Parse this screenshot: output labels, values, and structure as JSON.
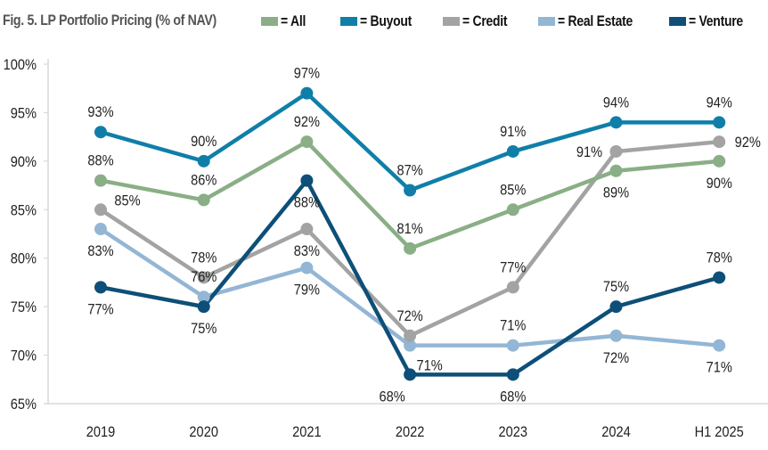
{
  "chart_data": {
    "type": "line",
    "title": "Fig. 5. LP Portfolio Pricing (% of NAV)",
    "xlabel": "",
    "ylabel": "",
    "categories": [
      "2019",
      "2020",
      "2021",
      "2022",
      "2023",
      "2024",
      "H1 2025"
    ],
    "ylim": [
      65,
      100
    ],
    "yticks": [
      65,
      70,
      75,
      80,
      85,
      90,
      95,
      100
    ],
    "ytick_labels": [
      "65%",
      "70%",
      "75%",
      "80%",
      "85%",
      "90%",
      "95%",
      "100%"
    ],
    "grid": false,
    "legend_position": "top",
    "legend_prefix": "= ",
    "series": [
      {
        "key": "all",
        "name": "All",
        "color": "#8aae86",
        "values": [
          88,
          86,
          92,
          81,
          85,
          89,
          90
        ],
        "labels": [
          "88%",
          "86%",
          "92%",
          "81%",
          "85%",
          "89%",
          "90%"
        ],
        "label_pos": [
          "above",
          "above",
          "above",
          "above",
          "above",
          "below",
          "below"
        ]
      },
      {
        "key": "buyout",
        "name": "Buyout",
        "color": "#0f7fa8",
        "values": [
          93,
          90,
          97,
          87,
          91,
          94,
          94
        ],
        "labels": [
          "93%",
          "90%",
          "97%",
          "87%",
          "91%",
          "94%",
          "94%"
        ],
        "label_pos": [
          "above",
          "above",
          "above",
          "above",
          "above",
          "above",
          "above"
        ]
      },
      {
        "key": "credit",
        "name": "Credit",
        "color": "#a3a3a3",
        "values": [
          85,
          78,
          83,
          72,
          77,
          91,
          92
        ],
        "labels": [
          "85%",
          "78%",
          "83%",
          "72%",
          "77%",
          "91%",
          "92%"
        ],
        "label_pos": [
          "above-right",
          "above",
          "below",
          "above",
          "above",
          "left",
          "right"
        ]
      },
      {
        "key": "real_estate",
        "name": "Real Estate",
        "color": "#93b6d5",
        "values": [
          83,
          76,
          79,
          71,
          71,
          72,
          71
        ],
        "labels": [
          "83%",
          "76%",
          "79%",
          "71%",
          "71%",
          "72%",
          "71%"
        ],
        "label_pos": [
          "below",
          "above",
          "below",
          "below-right",
          "above",
          "below",
          "below"
        ]
      },
      {
        "key": "venture",
        "name": "Venture",
        "color": "#0d4f78",
        "values": [
          77,
          75,
          88,
          68,
          68,
          75,
          78
        ],
        "labels": [
          "77%",
          "75%",
          "88%",
          "68%",
          "68%",
          "75%",
          "78%"
        ],
        "label_pos": [
          "below",
          "below",
          "below",
          "below-left",
          "below",
          "above",
          "above"
        ]
      }
    ]
  }
}
